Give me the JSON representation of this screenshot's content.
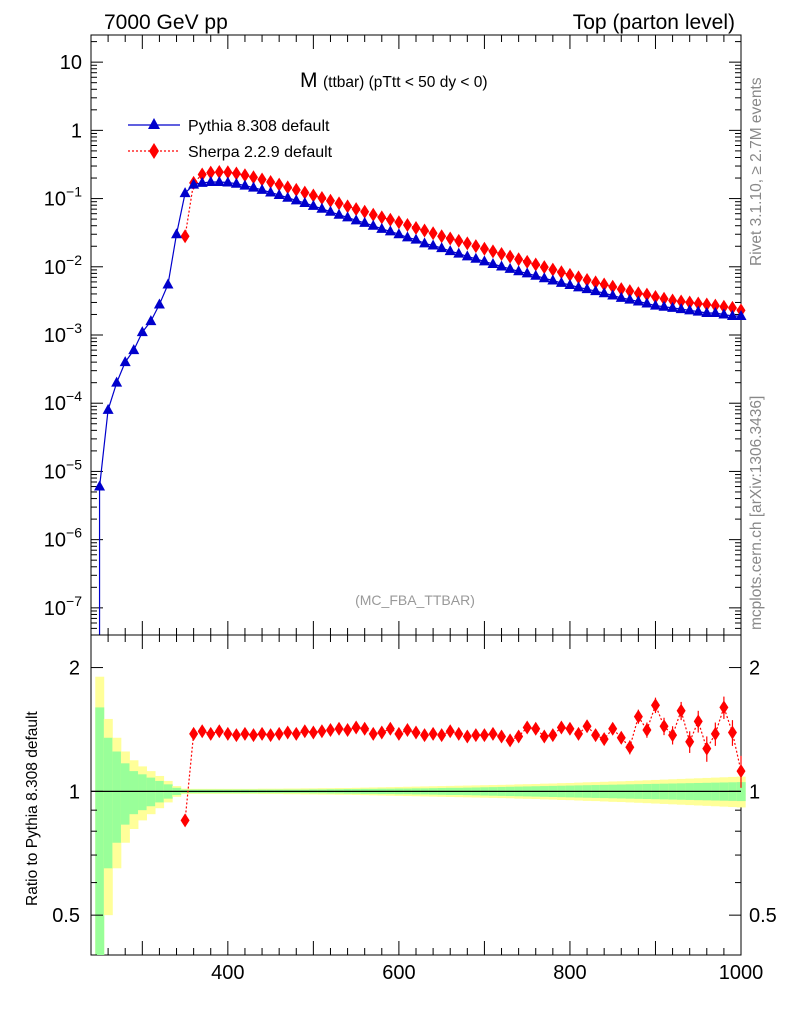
{
  "header": {
    "left": "7000 GeV pp",
    "right": "Top (parton level)"
  },
  "side": {
    "rivet": "Rivet 3.1.10, ≥ 2.7M events",
    "mcplots": "mcplots.cern.ch [arXiv:1306.3436]"
  },
  "colors": {
    "pythia": "#0000cc",
    "sherpa": "#ff0000",
    "band_inner": "#99ff99",
    "band_outer": "#ffff99"
  },
  "chart_data": [
    {
      "type": "line",
      "panel": "main",
      "title_main": "M",
      "title_sub": "(ttbar) (pTtt < 50 dy < 0)",
      "watermark": "(MC_FBA_TTBAR)",
      "yscale": "log",
      "xlim": [
        240,
        1000
      ],
      "ylim": [
        4e-08,
        25
      ],
      "legend_position": "top-left",
      "yticks": [
        {
          "v": 1e-07,
          "base": "10",
          "exp": "−7"
        },
        {
          "v": 1e-06,
          "base": "10",
          "exp": "−6"
        },
        {
          "v": 1e-05,
          "base": "10",
          "exp": "−5"
        },
        {
          "v": 0.0001,
          "base": "10",
          "exp": "−4"
        },
        {
          "v": 0.001,
          "base": "10",
          "exp": "−3"
        },
        {
          "v": 0.01,
          "base": "10",
          "exp": "−2"
        },
        {
          "v": 0.1,
          "base": "10",
          "exp": "−1"
        },
        {
          "v": 1,
          "base": "1",
          "exp": ""
        },
        {
          "v": 10,
          "base": "10",
          "exp": ""
        }
      ],
      "series": [
        {
          "name": "Pythia 8.308 default",
          "marker": "triangle",
          "line": "solid",
          "x": [
            250,
            260,
            270,
            280,
            290,
            300,
            310,
            320,
            330,
            340,
            350,
            360,
            370,
            380,
            390,
            400,
            410,
            420,
            430,
            440,
            450,
            460,
            470,
            480,
            490,
            500,
            510,
            520,
            530,
            540,
            550,
            560,
            570,
            580,
            590,
            600,
            610,
            620,
            630,
            640,
            650,
            660,
            670,
            680,
            690,
            700,
            710,
            720,
            730,
            740,
            750,
            760,
            770,
            780,
            790,
            800,
            810,
            820,
            830,
            840,
            850,
            860,
            870,
            880,
            890,
            900,
            910,
            920,
            930,
            940,
            950,
            960,
            970,
            980,
            990,
            1000
          ],
          "y": [
            6e-06,
            8e-05,
            0.0002,
            0.0004,
            0.0006,
            0.0011,
            0.0016,
            0.0028,
            0.0055,
            0.03,
            0.12,
            0.16,
            0.17,
            0.175,
            0.175,
            0.172,
            0.165,
            0.155,
            0.145,
            0.134,
            0.123,
            0.113,
            0.103,
            0.094,
            0.086,
            0.078,
            0.071,
            0.064,
            0.058,
            0.053,
            0.048,
            0.044,
            0.04,
            0.036,
            0.033,
            0.03,
            0.027,
            0.025,
            0.022,
            0.0205,
            0.0188,
            0.017,
            0.0156,
            0.0142,
            0.0131,
            0.012,
            0.011,
            0.0101,
            0.0093,
            0.0086,
            0.008,
            0.0074,
            0.0068,
            0.0063,
            0.0058,
            0.0054,
            0.005,
            0.0047,
            0.0044,
            0.0041,
            0.0038,
            0.0035,
            0.0033,
            0.0031,
            0.0029,
            0.0027,
            0.0026,
            0.0025,
            0.0024,
            0.0023,
            0.0022,
            0.0021,
            0.0021,
            0.002,
            0.0019,
            0.0019
          ]
        },
        {
          "name": "Sherpa 2.2.9 default",
          "marker": "diamond",
          "line": "dotted",
          "x": [
            350,
            360,
            370,
            380,
            390,
            400,
            410,
            420,
            430,
            440,
            450,
            460,
            470,
            480,
            490,
            500,
            510,
            520,
            530,
            540,
            550,
            560,
            570,
            580,
            590,
            600,
            610,
            620,
            630,
            640,
            650,
            660,
            670,
            680,
            690,
            700,
            710,
            720,
            730,
            740,
            750,
            760,
            770,
            780,
            790,
            800,
            810,
            820,
            830,
            840,
            850,
            860,
            870,
            880,
            890,
            900,
            910,
            920,
            930,
            940,
            950,
            960,
            970,
            980,
            990,
            1000
          ],
          "y": [
            0.028,
            0.17,
            0.225,
            0.24,
            0.245,
            0.243,
            0.233,
            0.22,
            0.205,
            0.19,
            0.175,
            0.16,
            0.146,
            0.134,
            0.122,
            0.111,
            0.102,
            0.093,
            0.085,
            0.077,
            0.07,
            0.064,
            0.058,
            0.053,
            0.049,
            0.045,
            0.041,
            0.037,
            0.034,
            0.031,
            0.028,
            0.026,
            0.024,
            0.022,
            0.0201,
            0.0184,
            0.0168,
            0.0154,
            0.0141,
            0.0129,
            0.0118,
            0.0108,
            0.0099,
            0.0091,
            0.0083,
            0.0076,
            0.007,
            0.0064,
            0.0059,
            0.0055,
            0.0051,
            0.0047,
            0.0044,
            0.0041,
            0.0039,
            0.0036,
            0.0034,
            0.0032,
            0.0031,
            0.003,
            0.0029,
            0.0028,
            0.0027,
            0.0026,
            0.0025,
            0.0023
          ]
        }
      ]
    },
    {
      "type": "line",
      "panel": "ratio",
      "ylabel": "Ratio to Pythia 8.308 default",
      "yscale": "log",
      "xlim": [
        240,
        1000
      ],
      "ylim": [
        0.4,
        2.4
      ],
      "xticks": [
        400,
        600,
        800,
        1000
      ],
      "yticks": [
        0.5,
        1,
        2
      ],
      "ytick_labels": [
        "0.5",
        "1",
        "2"
      ],
      "reference_line": 1,
      "band": {
        "x": [
          250,
          260,
          270,
          280,
          290,
          300,
          310,
          320,
          330,
          340,
          350,
          360,
          370,
          380,
          390,
          400,
          410,
          420,
          430,
          440,
          450,
          460,
          470,
          480,
          490,
          500,
          510,
          520,
          530,
          540,
          550,
          560,
          570,
          580,
          590,
          600,
          610,
          620,
          630,
          640,
          650,
          660,
          670,
          680,
          690,
          700,
          710,
          720,
          730,
          740,
          750,
          760,
          770,
          780,
          790,
          800,
          810,
          820,
          830,
          840,
          850,
          860,
          870,
          880,
          890,
          900,
          910,
          920,
          930,
          940,
          950,
          960,
          970,
          980,
          990,
          1000
        ],
        "inner_half_width": [
          0.6,
          0.35,
          0.25,
          0.17,
          0.12,
          0.1,
          0.08,
          0.06,
          0.04,
          0.02,
          0.01,
          0.01,
          0.01,
          0.01,
          0.01,
          0.01,
          0.01,
          0.01,
          0.01,
          0.01,
          0.01,
          0.01,
          0.01,
          0.01,
          0.01,
          0.011,
          0.011,
          0.012,
          0.012,
          0.013,
          0.013,
          0.014,
          0.014,
          0.015,
          0.015,
          0.016,
          0.016,
          0.017,
          0.017,
          0.018,
          0.019,
          0.02,
          0.02,
          0.021,
          0.022,
          0.023,
          0.024,
          0.025,
          0.026,
          0.027,
          0.028,
          0.029,
          0.03,
          0.031,
          0.032,
          0.033,
          0.034,
          0.035,
          0.036,
          0.037,
          0.038,
          0.039,
          0.04,
          0.041,
          0.042,
          0.043,
          0.044,
          0.045,
          0.046,
          0.047,
          0.048,
          0.049,
          0.05,
          0.051,
          0.052,
          0.053
        ],
        "outer_half_width": [
          0.9,
          0.5,
          0.35,
          0.25,
          0.19,
          0.15,
          0.12,
          0.09,
          0.06,
          0.03,
          0.015,
          0.014,
          0.014,
          0.014,
          0.014,
          0.014,
          0.014,
          0.014,
          0.014,
          0.015,
          0.015,
          0.015,
          0.016,
          0.016,
          0.017,
          0.017,
          0.018,
          0.018,
          0.019,
          0.019,
          0.02,
          0.021,
          0.022,
          0.023,
          0.024,
          0.025,
          0.026,
          0.027,
          0.028,
          0.029,
          0.03,
          0.031,
          0.032,
          0.033,
          0.034,
          0.035,
          0.036,
          0.037,
          0.038,
          0.04,
          0.041,
          0.042,
          0.044,
          0.045,
          0.047,
          0.048,
          0.05,
          0.052,
          0.053,
          0.055,
          0.057,
          0.058,
          0.06,
          0.062,
          0.064,
          0.066,
          0.068,
          0.07,
          0.072,
          0.074,
          0.076,
          0.078,
          0.08,
          0.082,
          0.084,
          0.086
        ]
      },
      "series": [
        {
          "name": "Sherpa 2.2.9 default",
          "marker": "diamond",
          "line": "dotted",
          "x": [
            350,
            360,
            370,
            380,
            390,
            400,
            410,
            420,
            430,
            440,
            450,
            460,
            470,
            480,
            490,
            500,
            510,
            520,
            530,
            540,
            550,
            560,
            570,
            580,
            590,
            600,
            610,
            620,
            630,
            640,
            650,
            660,
            670,
            680,
            690,
            700,
            710,
            720,
            730,
            740,
            750,
            760,
            770,
            780,
            790,
            800,
            810,
            820,
            830,
            840,
            850,
            860,
            870,
            880,
            890,
            900,
            910,
            920,
            930,
            940,
            950,
            960,
            970,
            980,
            990,
            1000
          ],
          "y": [
            0.85,
            1.38,
            1.4,
            1.38,
            1.4,
            1.38,
            1.37,
            1.38,
            1.37,
            1.38,
            1.37,
            1.38,
            1.39,
            1.38,
            1.4,
            1.39,
            1.4,
            1.41,
            1.42,
            1.41,
            1.43,
            1.42,
            1.38,
            1.39,
            1.42,
            1.38,
            1.41,
            1.39,
            1.37,
            1.38,
            1.37,
            1.4,
            1.38,
            1.36,
            1.37,
            1.37,
            1.38,
            1.36,
            1.33,
            1.36,
            1.43,
            1.42,
            1.36,
            1.37,
            1.43,
            1.42,
            1.38,
            1.44,
            1.37,
            1.34,
            1.42,
            1.35,
            1.28,
            1.52,
            1.41,
            1.62,
            1.44,
            1.37,
            1.57,
            1.32,
            1.48,
            1.27,
            1.38,
            1.6,
            1.39,
            1.12
          ],
          "err": [
            0.02,
            0.02,
            0.02,
            0.02,
            0.02,
            0.02,
            0.02,
            0.02,
            0.02,
            0.02,
            0.02,
            0.02,
            0.02,
            0.02,
            0.02,
            0.02,
            0.02,
            0.02,
            0.02,
            0.02,
            0.02,
            0.02,
            0.02,
            0.02,
            0.02,
            0.02,
            0.02,
            0.02,
            0.02,
            0.02,
            0.02,
            0.02,
            0.02,
            0.02,
            0.02,
            0.02,
            0.025,
            0.025,
            0.025,
            0.025,
            0.03,
            0.03,
            0.03,
            0.03,
            0.035,
            0.035,
            0.035,
            0.04,
            0.04,
            0.04,
            0.045,
            0.045,
            0.05,
            0.06,
            0.06,
            0.07,
            0.07,
            0.07,
            0.08,
            0.08,
            0.09,
            0.09,
            0.09,
            0.1,
            0.1,
            0.1
          ]
        }
      ]
    }
  ]
}
